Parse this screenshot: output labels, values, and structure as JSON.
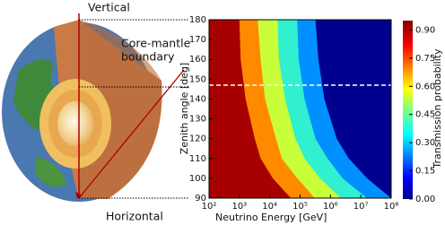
{
  "diagram": {
    "labels": {
      "vertical": "Vertical",
      "core_mantle_1": "Core-mantle",
      "core_mantle_2": "boundary",
      "horizontal": "Horizontal"
    }
  },
  "chart_data": {
    "type": "contour",
    "xlabel": "Neutrino Energy [GeV]",
    "ylabel": "Zenith angle [deg]",
    "colorbar_label": "Transmission probability",
    "xscale": "log",
    "xlim": [
      100,
      100000000
    ],
    "xticks": [
      {
        "value": 100,
        "label": "10²"
      },
      {
        "value": 1000,
        "label": "10³"
      },
      {
        "value": 10000,
        "label": "10⁴"
      },
      {
        "value": 100000,
        "label": "10⁵"
      },
      {
        "value": 1000000,
        "label": "10⁶"
      },
      {
        "value": 10000000,
        "label": "10⁷"
      },
      {
        "value": 100000000,
        "label": "10⁸"
      }
    ],
    "ylim": [
      90,
      180
    ],
    "yticks": [
      90,
      100,
      110,
      120,
      130,
      140,
      150,
      160,
      170,
      180
    ],
    "clim": [
      0,
      0.95
    ],
    "cticks": [
      {
        "value": 0,
        "label": "0.00"
      },
      {
        "value": 0.15,
        "label": "0.15"
      },
      {
        "value": 0.3,
        "label": "0.30"
      },
      {
        "value": 0.45,
        "label": "0.45"
      },
      {
        "value": 0.6,
        "label": "0.60"
      },
      {
        "value": 0.75,
        "label": "0.75"
      },
      {
        "value": 0.9,
        "label": "0.90"
      }
    ],
    "background_color": "#00008f",
    "core_mantle_zenith": 147,
    "zenith": [
      90,
      95,
      100,
      110,
      120,
      140,
      160,
      180
    ],
    "contours": [
      {
        "level": 0.1,
        "color": "#0090ff",
        "energy": [
          100000000,
          40000000,
          16000000,
          4000000,
          1600000,
          630000,
          400000,
          320000
        ]
      },
      {
        "level": 0.3,
        "color": "#30f0d0",
        "energy": [
          16000000,
          6300000,
          2500000,
          800000,
          320000,
          140000,
          90000,
          80000
        ]
      },
      {
        "level": 0.5,
        "color": "#c8ff38",
        "energy": [
          2200000,
          1000000,
          450000,
          140000,
          70000,
          32000,
          20000,
          18000
        ]
      },
      {
        "level": 0.7,
        "color": "#ff8a00",
        "energy": [
          300000,
          160000,
          80000,
          25000,
          16000,
          7000,
          5000,
          4000
        ]
      },
      {
        "level": 0.9,
        "color": "#a80000",
        "energy": [
          50000,
          25000,
          12600,
          5000,
          3200,
          1600,
          1100,
          1000
        ]
      }
    ]
  }
}
